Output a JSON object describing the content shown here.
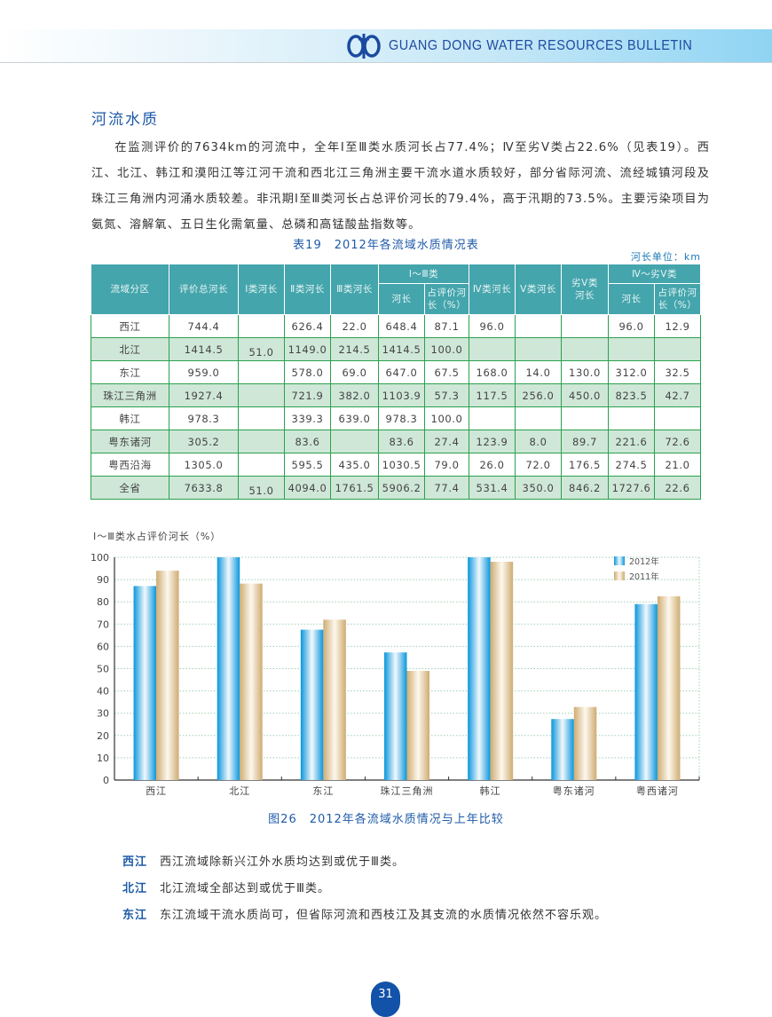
{
  "header": {
    "title": "GUANG DONG WATER RESOURCES BULLETIN",
    "logo_icon": "water-resources-logo-icon"
  },
  "section": {
    "title": "河流水质",
    "paragraph": "在监测评价的7634km的河流中，全年Ⅰ至Ⅲ类水质河长占77.4%；Ⅳ至劣Ⅴ类占22.6%（见表19）。西江、北江、韩江和漠阳江等江河干流和西北江三角洲主要干流水道水质较好，部分省际河流、流经城镇河段及珠江三角洲内河涌水质较差。非汛期Ⅰ至Ⅲ类河长占总评价河长的79.4%，高于汛期的73.5%。主要污染项目为氨氮、溶解氧、五日生化需氧量、总磷和高锰酸盐指数等。"
  },
  "table": {
    "caption": "表19　2012年各流域水质情况表",
    "unit": "河长单位：km",
    "headers": {
      "region": "流域分区",
      "total": "评价总河长",
      "c1": "Ⅰ类河长",
      "c2": "Ⅱ类河长",
      "c3": "Ⅲ类河长",
      "g13": "Ⅰ～Ⅲ类",
      "g13_len": "河长",
      "g13_pct": "占评价河长（%）",
      "c4": "Ⅳ类河长",
      "c5": "Ⅴ类河长",
      "c5w": "劣Ⅴ类河长",
      "g4w": "Ⅳ～劣Ⅴ类",
      "g4w_len": "河长",
      "g4w_pct": "占评价河长（%）"
    },
    "rows": [
      {
        "region": "西江",
        "total": "744.4",
        "c1": "",
        "c2": "626.4",
        "c3": "22.0",
        "g13_len": "648.4",
        "g13_pct": "87.1",
        "c4": "96.0",
        "c5": "",
        "c5w": "",
        "g4w_len": "96.0",
        "g4w_pct": "12.9"
      },
      {
        "region": "北江",
        "total": "1414.5",
        "c1": "51.0",
        "c2": "1149.0",
        "c3": "214.5",
        "g13_len": "1414.5",
        "g13_pct": "100.0",
        "c4": "",
        "c5": "",
        "c5w": "",
        "g4w_len": "",
        "g4w_pct": ""
      },
      {
        "region": "东江",
        "total": "959.0",
        "c1": "",
        "c2": "578.0",
        "c3": "69.0",
        "g13_len": "647.0",
        "g13_pct": "67.5",
        "c4": "168.0",
        "c5": "14.0",
        "c5w": "130.0",
        "g4w_len": "312.0",
        "g4w_pct": "32.5"
      },
      {
        "region": "珠江三角洲",
        "total": "1927.4",
        "c1": "",
        "c2": "721.9",
        "c3": "382.0",
        "g13_len": "1103.9",
        "g13_pct": "57.3",
        "c4": "117.5",
        "c5": "256.0",
        "c5w": "450.0",
        "g4w_len": "823.5",
        "g4w_pct": "42.7"
      },
      {
        "region": "韩江",
        "total": "978.3",
        "c1": "",
        "c2": "339.3",
        "c3": "639.0",
        "g13_len": "978.3",
        "g13_pct": "100.0",
        "c4": "",
        "c5": "",
        "c5w": "",
        "g4w_len": "",
        "g4w_pct": ""
      },
      {
        "region": "粤东诸河",
        "total": "305.2",
        "c1": "",
        "c2": "83.6",
        "c3": "",
        "g13_len": "83.6",
        "g13_pct": "27.4",
        "c4": "123.9",
        "c5": "8.0",
        "c5w": "89.7",
        "g4w_len": "221.6",
        "g4w_pct": "72.6"
      },
      {
        "region": "粤西沿海",
        "total": "1305.0",
        "c1": "",
        "c2": "595.5",
        "c3": "435.0",
        "g13_len": "1030.5",
        "g13_pct": "79.0",
        "c4": "26.0",
        "c5": "72.0",
        "c5w": "176.5",
        "g4w_len": "274.5",
        "g4w_pct": "21.0"
      },
      {
        "region": "全省",
        "total": "7633.8",
        "c1": "51.0",
        "c2": "4094.0",
        "c3": "1761.5",
        "g13_len": "5906.2",
        "g13_pct": "77.4",
        "c4": "531.4",
        "c5": "350.0",
        "c5w": "846.2",
        "g4w_len": "1727.6",
        "g4w_pct": "22.6"
      }
    ]
  },
  "chart_data": {
    "type": "bar",
    "title": "图26　2012年各流域水质情况与上年比较",
    "ylabel": "Ⅰ～Ⅲ类水占评价河长（%）",
    "xlabel": "",
    "ylim": [
      0,
      100
    ],
    "yticks": [
      0,
      10,
      20,
      30,
      40,
      50,
      60,
      70,
      80,
      90,
      100
    ],
    "grid": true,
    "legend_position": "top-right",
    "categories": [
      "西江",
      "北江",
      "东江",
      "珠江三角洲",
      "韩江",
      "粤东诸河",
      "粤西诸河"
    ],
    "series": [
      {
        "name": "2012年",
        "color": "#0a96dc",
        "values": [
          87.1,
          100.0,
          67.5,
          57.3,
          100.0,
          27.4,
          79.0
        ]
      },
      {
        "name": "2011年",
        "color": "#cfac72",
        "values": [
          94.0,
          88.2,
          72.0,
          49.0,
          98.0,
          32.8,
          82.5
        ]
      }
    ]
  },
  "notes": [
    {
      "key": "西江",
      "text": "西江流域除新兴江外水质均达到或优于Ⅲ类。"
    },
    {
      "key": "北江",
      "text": "北江流域全部达到或优于Ⅲ类。"
    },
    {
      "key": "东江",
      "text": "东江流域干流水质尚可，但省际河流和西枝江及其支流的水质情况依然不容乐观。"
    }
  ],
  "page": {
    "number": "31"
  }
}
